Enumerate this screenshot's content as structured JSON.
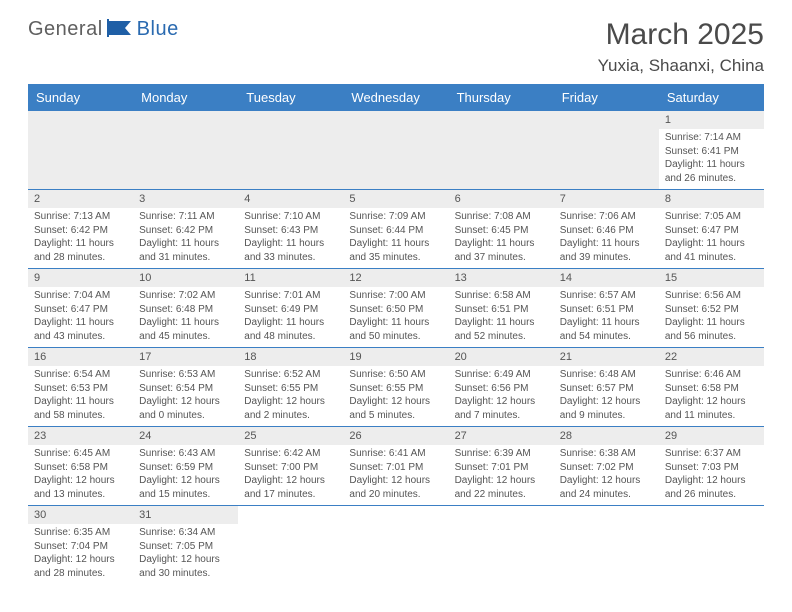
{
  "logo": {
    "general": "General",
    "blue": "Blue"
  },
  "title": "March 2025",
  "location": "Yuxia, Shaanxi, China",
  "colors": {
    "header_bg": "#3b7fc4",
    "header_text": "#ffffff",
    "rule": "#3b7fc4",
    "daynum_bg": "#ededed",
    "text": "#555555",
    "logo_general": "#5f5f5f",
    "logo_blue": "#2a6ab0"
  },
  "weekdays": [
    "Sunday",
    "Monday",
    "Tuesday",
    "Wednesday",
    "Thursday",
    "Friday",
    "Saturday"
  ],
  "weeks": [
    [
      null,
      null,
      null,
      null,
      null,
      null,
      {
        "n": "1",
        "sr": "Sunrise: 7:14 AM",
        "ss": "Sunset: 6:41 PM",
        "dl": "Daylight: 11 hours and 26 minutes."
      }
    ],
    [
      {
        "n": "2",
        "sr": "Sunrise: 7:13 AM",
        "ss": "Sunset: 6:42 PM",
        "dl": "Daylight: 11 hours and 28 minutes."
      },
      {
        "n": "3",
        "sr": "Sunrise: 7:11 AM",
        "ss": "Sunset: 6:42 PM",
        "dl": "Daylight: 11 hours and 31 minutes."
      },
      {
        "n": "4",
        "sr": "Sunrise: 7:10 AM",
        "ss": "Sunset: 6:43 PM",
        "dl": "Daylight: 11 hours and 33 minutes."
      },
      {
        "n": "5",
        "sr": "Sunrise: 7:09 AM",
        "ss": "Sunset: 6:44 PM",
        "dl": "Daylight: 11 hours and 35 minutes."
      },
      {
        "n": "6",
        "sr": "Sunrise: 7:08 AM",
        "ss": "Sunset: 6:45 PM",
        "dl": "Daylight: 11 hours and 37 minutes."
      },
      {
        "n": "7",
        "sr": "Sunrise: 7:06 AM",
        "ss": "Sunset: 6:46 PM",
        "dl": "Daylight: 11 hours and 39 minutes."
      },
      {
        "n": "8",
        "sr": "Sunrise: 7:05 AM",
        "ss": "Sunset: 6:47 PM",
        "dl": "Daylight: 11 hours and 41 minutes."
      }
    ],
    [
      {
        "n": "9",
        "sr": "Sunrise: 7:04 AM",
        "ss": "Sunset: 6:47 PM",
        "dl": "Daylight: 11 hours and 43 minutes."
      },
      {
        "n": "10",
        "sr": "Sunrise: 7:02 AM",
        "ss": "Sunset: 6:48 PM",
        "dl": "Daylight: 11 hours and 45 minutes."
      },
      {
        "n": "11",
        "sr": "Sunrise: 7:01 AM",
        "ss": "Sunset: 6:49 PM",
        "dl": "Daylight: 11 hours and 48 minutes."
      },
      {
        "n": "12",
        "sr": "Sunrise: 7:00 AM",
        "ss": "Sunset: 6:50 PM",
        "dl": "Daylight: 11 hours and 50 minutes."
      },
      {
        "n": "13",
        "sr": "Sunrise: 6:58 AM",
        "ss": "Sunset: 6:51 PM",
        "dl": "Daylight: 11 hours and 52 minutes."
      },
      {
        "n": "14",
        "sr": "Sunrise: 6:57 AM",
        "ss": "Sunset: 6:51 PM",
        "dl": "Daylight: 11 hours and 54 minutes."
      },
      {
        "n": "15",
        "sr": "Sunrise: 6:56 AM",
        "ss": "Sunset: 6:52 PM",
        "dl": "Daylight: 11 hours and 56 minutes."
      }
    ],
    [
      {
        "n": "16",
        "sr": "Sunrise: 6:54 AM",
        "ss": "Sunset: 6:53 PM",
        "dl": "Daylight: 11 hours and 58 minutes."
      },
      {
        "n": "17",
        "sr": "Sunrise: 6:53 AM",
        "ss": "Sunset: 6:54 PM",
        "dl": "Daylight: 12 hours and 0 minutes."
      },
      {
        "n": "18",
        "sr": "Sunrise: 6:52 AM",
        "ss": "Sunset: 6:55 PM",
        "dl": "Daylight: 12 hours and 2 minutes."
      },
      {
        "n": "19",
        "sr": "Sunrise: 6:50 AM",
        "ss": "Sunset: 6:55 PM",
        "dl": "Daylight: 12 hours and 5 minutes."
      },
      {
        "n": "20",
        "sr": "Sunrise: 6:49 AM",
        "ss": "Sunset: 6:56 PM",
        "dl": "Daylight: 12 hours and 7 minutes."
      },
      {
        "n": "21",
        "sr": "Sunrise: 6:48 AM",
        "ss": "Sunset: 6:57 PM",
        "dl": "Daylight: 12 hours and 9 minutes."
      },
      {
        "n": "22",
        "sr": "Sunrise: 6:46 AM",
        "ss": "Sunset: 6:58 PM",
        "dl": "Daylight: 12 hours and 11 minutes."
      }
    ],
    [
      {
        "n": "23",
        "sr": "Sunrise: 6:45 AM",
        "ss": "Sunset: 6:58 PM",
        "dl": "Daylight: 12 hours and 13 minutes."
      },
      {
        "n": "24",
        "sr": "Sunrise: 6:43 AM",
        "ss": "Sunset: 6:59 PM",
        "dl": "Daylight: 12 hours and 15 minutes."
      },
      {
        "n": "25",
        "sr": "Sunrise: 6:42 AM",
        "ss": "Sunset: 7:00 PM",
        "dl": "Daylight: 12 hours and 17 minutes."
      },
      {
        "n": "26",
        "sr": "Sunrise: 6:41 AM",
        "ss": "Sunset: 7:01 PM",
        "dl": "Daylight: 12 hours and 20 minutes."
      },
      {
        "n": "27",
        "sr": "Sunrise: 6:39 AM",
        "ss": "Sunset: 7:01 PM",
        "dl": "Daylight: 12 hours and 22 minutes."
      },
      {
        "n": "28",
        "sr": "Sunrise: 6:38 AM",
        "ss": "Sunset: 7:02 PM",
        "dl": "Daylight: 12 hours and 24 minutes."
      },
      {
        "n": "29",
        "sr": "Sunrise: 6:37 AM",
        "ss": "Sunset: 7:03 PM",
        "dl": "Daylight: 12 hours and 26 minutes."
      }
    ],
    [
      {
        "n": "30",
        "sr": "Sunrise: 6:35 AM",
        "ss": "Sunset: 7:04 PM",
        "dl": "Daylight: 12 hours and 28 minutes."
      },
      {
        "n": "31",
        "sr": "Sunrise: 6:34 AM",
        "ss": "Sunset: 7:05 PM",
        "dl": "Daylight: 12 hours and 30 minutes."
      },
      null,
      null,
      null,
      null,
      null
    ]
  ]
}
